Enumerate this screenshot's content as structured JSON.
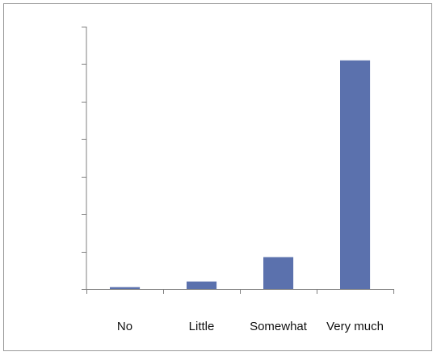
{
  "chart_data": {
    "type": "bar",
    "categories": [
      "No",
      "Little",
      "Somewhat",
      "Very much"
    ],
    "values": [
      1,
      4,
      17,
      122
    ],
    "ylim": [
      0,
      140
    ],
    "y_ticks": [
      0,
      20,
      40,
      60,
      80,
      100,
      120,
      140
    ],
    "y_tick_labels_shown": false,
    "grid": false,
    "legend": "none",
    "colors": {
      "bar": "#5b71ad",
      "axis": "#7f7f7f",
      "frame": "#9a9a9a"
    }
  }
}
